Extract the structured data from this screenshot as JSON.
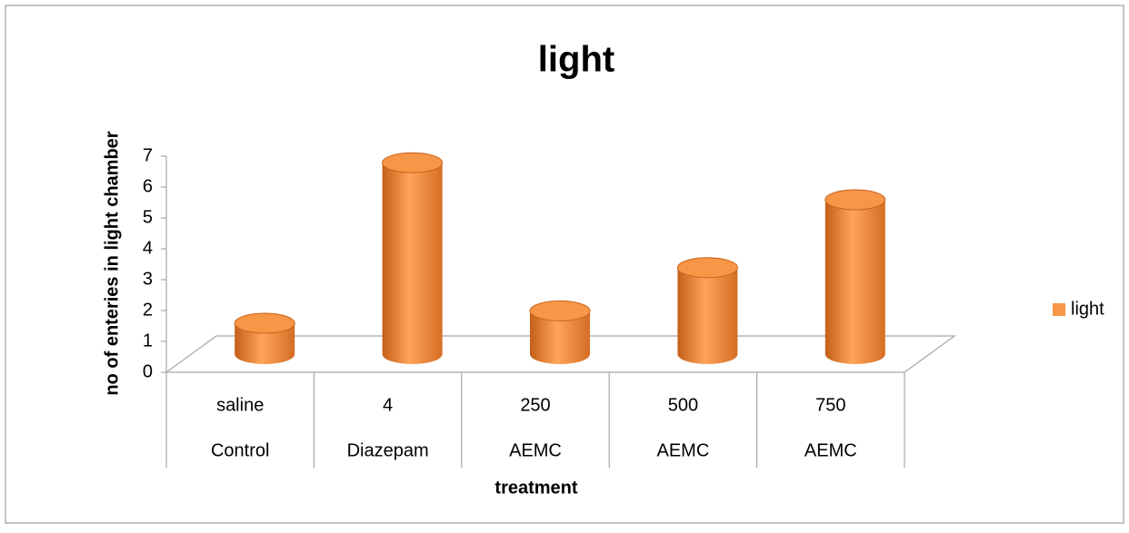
{
  "chart_data": {
    "type": "bar3d",
    "title": "light",
    "categories": [
      "saline",
      "4",
      "250",
      "500",
      "750"
    ],
    "category_groups": [
      "Control",
      "Diazepam",
      "AEMC",
      "AEMC",
      "AEMC"
    ],
    "series": [
      {
        "name": "light",
        "color": "#f79646",
        "values": [
          1,
          6.2,
          1.4,
          2.8,
          5
        ]
      }
    ],
    "ylabel": "no of enteries in light chamber",
    "xlabel": "treatment",
    "ylim": [
      0,
      7
    ],
    "yticks": [
      0,
      1,
      2,
      3,
      4,
      5,
      6,
      7
    ],
    "grid": false,
    "legend": "right"
  }
}
